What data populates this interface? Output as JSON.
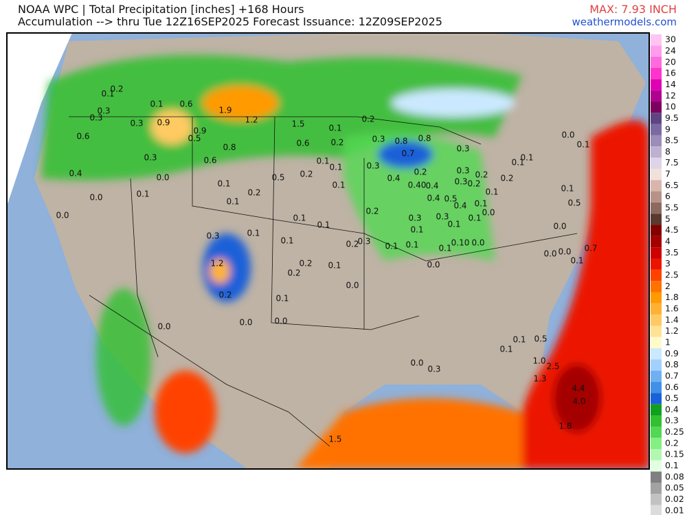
{
  "header": {
    "title": "NOAA WPC | Total Precipitation [inches] +168 Hours",
    "subtitle": "Accumulation --> thru Tue 12Z16SEP2025   Forecast Issuance: 12Z09SEP2025",
    "max_label": "MAX: 7.93 INCH",
    "website": "weathermodels.com"
  },
  "legend": {
    "items": [
      {
        "label": "30",
        "color": "#ffc4f4"
      },
      {
        "label": "24",
        "color": "#ff9cec"
      },
      {
        "label": "20",
        "color": "#ff6ade"
      },
      {
        "label": "16",
        "color": "#ff34cc"
      },
      {
        "label": "14",
        "color": "#e000b4"
      },
      {
        "label": "12",
        "color": "#b00090"
      },
      {
        "label": "10",
        "color": "#7c0060"
      },
      {
        "label": "9.5",
        "color": "#5e4482"
      },
      {
        "label": "9",
        "color": "#7a6aa2"
      },
      {
        "label": "8.5",
        "color": "#9c8cba"
      },
      {
        "label": "8",
        "color": "#bdb1d2"
      },
      {
        "label": "7.5",
        "color": "#ddd5e7"
      },
      {
        "label": "7",
        "color": "#f2e0dc"
      },
      {
        "label": "6.5",
        "color": "#d8b6ae"
      },
      {
        "label": "6",
        "color": "#b8928a"
      },
      {
        "label": "5.5",
        "color": "#8c6a60"
      },
      {
        "label": "5",
        "color": "#5a3a30"
      },
      {
        "label": "4.5",
        "color": "#820000"
      },
      {
        "label": "4",
        "color": "#a40000"
      },
      {
        "label": "3.5",
        "color": "#cc0000"
      },
      {
        "label": "3",
        "color": "#ec1400"
      },
      {
        "label": "2.5",
        "color": "#ff4200"
      },
      {
        "label": "2",
        "color": "#ff7200"
      },
      {
        "label": "1.8",
        "color": "#ff9a00"
      },
      {
        "label": "1.6",
        "color": "#ffb232"
      },
      {
        "label": "1.4",
        "color": "#ffca62"
      },
      {
        "label": "1.2",
        "color": "#ffe294"
      },
      {
        "label": "1",
        "color": "#fffaca"
      },
      {
        "label": "0.9",
        "color": "#cae9ff"
      },
      {
        "label": "0.8",
        "color": "#a2d0ff"
      },
      {
        "label": "0.7",
        "color": "#70b0f2"
      },
      {
        "label": "0.6",
        "color": "#4090e8"
      },
      {
        "label": "0.5",
        "color": "#1a60d8"
      },
      {
        "label": "0.4",
        "color": "#10a020"
      },
      {
        "label": "0.3",
        "color": "#30c030"
      },
      {
        "label": "0.25",
        "color": "#52d852"
      },
      {
        "label": "0.2",
        "color": "#82f082"
      },
      {
        "label": "0.15",
        "color": "#b2f8b2"
      },
      {
        "label": "0.1",
        "color": "#e2ffe2"
      },
      {
        "label": "0.08",
        "color": "#808080"
      },
      {
        "label": "0.05",
        "color": "#a2a2a2"
      },
      {
        "label": "0.02",
        "color": "#c2c2c2"
      },
      {
        "label": "0.01",
        "color": "#dcdcdc"
      }
    ]
  },
  "map": {
    "labels": [
      "0.2",
      "0.1",
      "0.1",
      "0.6",
      "1.9",
      "0.3",
      "0.3",
      "1.2",
      "0.3",
      "0.9",
      "0.9",
      "1.5",
      "0.1",
      "0.2",
      "0.6",
      "0.5",
      "0.8",
      "0.6",
      "0.2",
      "0.3",
      "0.8",
      "0.8",
      "0.3",
      "0.0",
      "0.1",
      "0.3",
      "0.6",
      "0.1",
      "0.1",
      "0.3",
      "0.7",
      "0.2",
      "0.3",
      "0.1",
      "0.1",
      "0.4",
      "0.0",
      "0.5",
      "0.2",
      "0.1",
      "0.2",
      "0.1",
      "0.4",
      "0.40",
      "0.4",
      "0.2",
      "0.3",
      "0.2",
      "0.1",
      "0.2",
      "0.1",
      "0.0",
      "0.1",
      "0.1",
      "0.4",
      "0.5",
      "0.2",
      "0.4",
      "0.1",
      "0.0",
      "0.5",
      "0.0",
      "0.1",
      "0.1",
      "0.3",
      "0.3",
      "0.1",
      "0.1",
      "0.0",
      "0.1",
      "0.3",
      "0.1",
      "0.2",
      "0.3",
      "0.1",
      "0.1",
      "0.1",
      "0.1",
      "0.10",
      "0.0",
      "0.0",
      "0.0",
      "0.7",
      "0.1",
      "1.2",
      "0.2",
      "0.1",
      "0.0",
      "0.2",
      "0.0",
      "0.2",
      "0.1",
      "0.0",
      "0.0",
      "0.0",
      "0.1",
      "0.5",
      "0.1",
      "1.0",
      "0.0",
      "0.3",
      "2.5",
      "1.3",
      "4.4",
      "4.0",
      "1.8",
      "1.5"
    ]
  }
}
